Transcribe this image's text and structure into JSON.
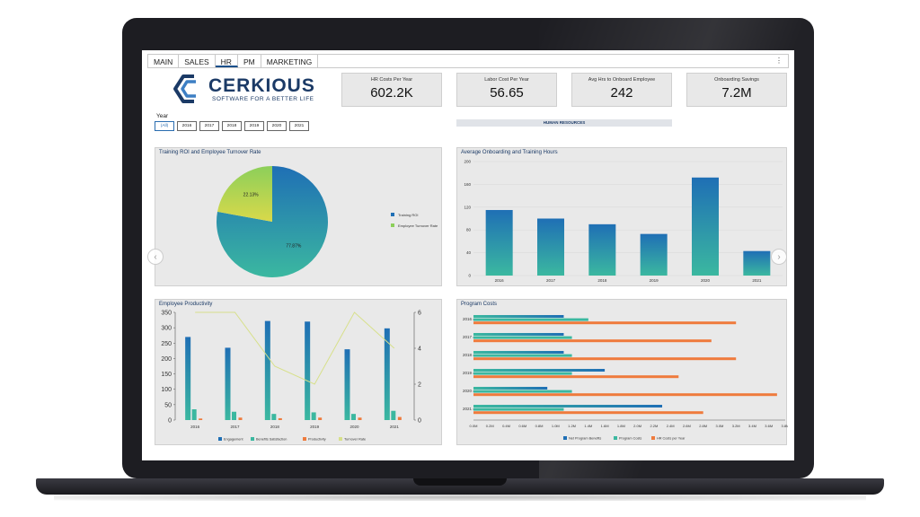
{
  "tabs": [
    {
      "label": "MAIN",
      "active": false
    },
    {
      "label": "SALES",
      "active": false
    },
    {
      "label": "HR",
      "active": true
    },
    {
      "label": "PM",
      "active": false
    },
    {
      "label": "MARKETING",
      "active": false
    }
  ],
  "more_menu": "⋮",
  "logo": {
    "name": "CERKIOUS",
    "tagline": "SOFTWARE FOR A BETTER LIFE"
  },
  "kpis": [
    {
      "label": "HR Costs Per Year",
      "value": "602.2K"
    },
    {
      "label": "Labor Cost Per Year",
      "value": "56.65"
    },
    {
      "label": "Avg Hrs to Onboard Employee",
      "value": "242"
    },
    {
      "label": "Onboarding Savings",
      "value": "7.2M"
    }
  ],
  "year_filter": {
    "label": "Year",
    "options": [
      "(All)",
      "2016",
      "2017",
      "2018",
      "2019",
      "2020",
      "2021"
    ],
    "selected": "(All)"
  },
  "banner": "HUMAN RESOURCES",
  "nav": {
    "prev": "‹",
    "next": "›"
  },
  "colors": {
    "blue": "#1f6fb5",
    "teal": "#3bb8a0",
    "green": "#8ccf5a",
    "yellow": "#d9d94a",
    "orange": "#ef7b3d",
    "line": "#d7e08a",
    "navy": "#1b3a66"
  },
  "chart_data": [
    {
      "type": "pie",
      "title": "Training ROI and Employee Turnover Rate",
      "series": [
        {
          "name": "Training ROI",
          "value": 77.87,
          "label": "77.87%"
        },
        {
          "name": "Employee Turnover Rate",
          "value": 22.13,
          "label": "22.13%"
        }
      ],
      "legend": "right"
    },
    {
      "type": "bar",
      "title": "Average Onboarding and Training Hours",
      "categories": [
        "2016",
        "2017",
        "2018",
        "2019",
        "2020",
        "2021"
      ],
      "values": [
        115,
        100,
        90,
        73,
        172,
        43
      ],
      "ylim": [
        0,
        200
      ],
      "yticks": [
        "0",
        "40",
        "80",
        "120",
        "160",
        "200"
      ]
    },
    {
      "type": "bar",
      "title": "Employee Productivity",
      "categories": [
        "2016",
        "2017",
        "2018",
        "2019",
        "2020",
        "2021"
      ],
      "series": [
        {
          "name": "Engagement",
          "values": [
            270,
            235,
            322,
            320,
            230,
            298
          ]
        },
        {
          "name": "Benefits Satisfaction",
          "values": [
            35,
            27,
            20,
            25,
            20,
            30
          ]
        },
        {
          "name": "Productivity",
          "values": [
            5,
            8,
            6,
            8,
            8,
            10
          ]
        },
        {
          "name": "Turnover Rate",
          "axis": "right",
          "values": [
            6,
            6,
            3,
            2,
            6,
            4
          ]
        }
      ],
      "ylim": [
        0,
        350
      ],
      "yticks": [
        "0",
        "50",
        "100",
        "150",
        "200",
        "250",
        "300",
        "350"
      ],
      "y2lim": [
        0,
        6
      ],
      "y2ticks": [
        "0",
        "2",
        "4",
        "6"
      ],
      "legend": "bottom"
    },
    {
      "type": "bar",
      "orientation": "horizontal",
      "title": "Program Costs",
      "categories": [
        "2016",
        "2017",
        "2018",
        "2019",
        "2020",
        "2021"
      ],
      "series": [
        {
          "name": "Net Program Benefits",
          "values": [
            1.1,
            1.1,
            1.1,
            1.6,
            0.9,
            2.3
          ]
        },
        {
          "name": "Program Costs",
          "values": [
            1.4,
            1.2,
            1.2,
            1.2,
            1.2,
            1.1
          ]
        },
        {
          "name": "HR Costs per Year",
          "values": [
            3.2,
            2.9,
            3.2,
            2.5,
            3.7,
            2.8
          ]
        }
      ],
      "xlim": [
        0,
        3.8
      ],
      "xticks": [
        "0.0M",
        "0.2M",
        "0.4M",
        "0.6M",
        "0.8M",
        "1.0M",
        "1.2M",
        "1.4M",
        "1.6M",
        "1.8M",
        "2.0M",
        "2.2M",
        "2.4M",
        "2.6M",
        "2.8M",
        "3.0M",
        "3.2M",
        "3.4M",
        "3.6M",
        "3.8M"
      ],
      "legend": "bottom"
    }
  ]
}
